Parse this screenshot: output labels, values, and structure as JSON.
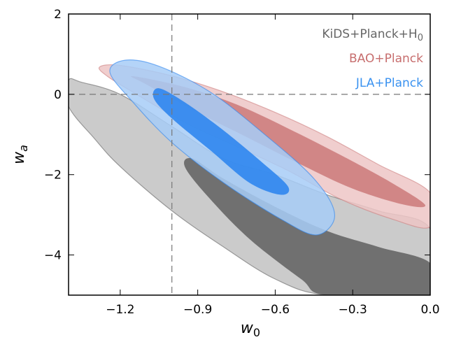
{
  "chart_data": {
    "type": "contour",
    "xlabel": "w",
    "xlabel_sub": "0",
    "ylabel": "w",
    "ylabel_sub": "a",
    "xlim": [
      -1.4,
      0.0
    ],
    "ylim": [
      -5.0,
      2.0
    ],
    "x_ticks": [
      -1.2,
      -0.9,
      -0.6,
      -0.3,
      0.0
    ],
    "x_tick_labels": [
      "−1.2",
      "−0.9",
      "−0.6",
      "−0.3",
      "0.0"
    ],
    "y_ticks": [
      2,
      0,
      -2,
      -4
    ],
    "y_tick_labels": [
      "2",
      "0",
      "−2",
      "−4"
    ],
    "reference_lines": {
      "vertical_x": -1.0,
      "horizontal_y": 0.0
    },
    "legend_position": "top-right",
    "grid": false,
    "series": [
      {
        "name": "KiDS+Planck+H",
        "name_sub": "0",
        "label_color": "#666666",
        "outer_color": "#c2c2c2",
        "inner_color": "#666666",
        "outer_contour": [
          [
            -1.4,
            0.35
          ],
          [
            -1.35,
            0.3
          ],
          [
            -1.2,
            0.0
          ],
          [
            -1.0,
            -0.8
          ],
          [
            -0.8,
            -1.6
          ],
          [
            -0.6,
            -2.0
          ],
          [
            -0.4,
            -2.5
          ],
          [
            -0.2,
            -2.9
          ],
          [
            0.0,
            -3.35
          ],
          [
            0.0,
            -5.0
          ],
          [
            -0.4,
            -5.0
          ],
          [
            -0.6,
            -4.6
          ],
          [
            -0.8,
            -3.8
          ],
          [
            -1.0,
            -2.9
          ],
          [
            -1.2,
            -1.8
          ],
          [
            -1.3,
            -1.1
          ],
          [
            -1.4,
            -0.3
          ]
        ],
        "inner_contour": [
          [
            -0.92,
            -1.6
          ],
          [
            -0.8,
            -2.1
          ],
          [
            -0.6,
            -2.8
          ],
          [
            -0.4,
            -3.4
          ],
          [
            -0.2,
            -3.8
          ],
          [
            0.0,
            -4.2
          ],
          [
            0.0,
            -5.0
          ],
          [
            -0.4,
            -5.0
          ],
          [
            -0.5,
            -4.6
          ],
          [
            -0.7,
            -3.6
          ],
          [
            -0.86,
            -2.55
          ],
          [
            -0.95,
            -1.8
          ]
        ]
      },
      {
        "name": "BAO+Planck",
        "label_color": "#c76e6e",
        "outer_color": "#edc6c6",
        "inner_color": "#cd7e7e",
        "outer_contour": [
          [
            -1.28,
            0.68
          ],
          [
            -1.2,
            0.72
          ],
          [
            -1.0,
            0.46
          ],
          [
            -0.8,
            0.06
          ],
          [
            -0.6,
            -0.45
          ],
          [
            -0.4,
            -1.05
          ],
          [
            -0.2,
            -1.75
          ],
          [
            0.0,
            -2.45
          ],
          [
            0.0,
            -3.3
          ],
          [
            -0.15,
            -3.1
          ],
          [
            -0.35,
            -2.6
          ],
          [
            -0.55,
            -1.9
          ],
          [
            -0.75,
            -1.3
          ],
          [
            -0.95,
            -0.7
          ],
          [
            -1.15,
            0.05
          ],
          [
            -1.25,
            0.45
          ]
        ],
        "inner_contour": [
          [
            -1.15,
            0.45
          ],
          [
            -0.95,
            0.18
          ],
          [
            -0.75,
            -0.25
          ],
          [
            -0.55,
            -0.85
          ],
          [
            -0.35,
            -1.5
          ],
          [
            -0.15,
            -2.2
          ],
          [
            -0.02,
            -2.75
          ],
          [
            -0.1,
            -2.75
          ],
          [
            -0.3,
            -2.35
          ],
          [
            -0.5,
            -1.75
          ],
          [
            -0.7,
            -1.1
          ],
          [
            -0.9,
            -0.45
          ],
          [
            -1.1,
            0.25
          ]
        ]
      },
      {
        "name": "JLA+Planck",
        "label_color": "#3a92f0",
        "outer_color": "#a7cdf7",
        "inner_color": "#2f86ee",
        "outer_contour": [
          [
            -1.18,
            0.85
          ],
          [
            -1.05,
            0.7
          ],
          [
            -0.85,
            0.05
          ],
          [
            -0.65,
            -0.95
          ],
          [
            -0.45,
            -2.1
          ],
          [
            -0.37,
            -3.0
          ],
          [
            -0.44,
            -3.5
          ],
          [
            -0.58,
            -3.1
          ],
          [
            -0.8,
            -2.2
          ],
          [
            -1.0,
            -1.2
          ],
          [
            -1.15,
            -0.2
          ],
          [
            -1.24,
            0.55
          ]
        ],
        "inner_contour": [
          [
            -1.05,
            0.15
          ],
          [
            -0.95,
            -0.2
          ],
          [
            -0.8,
            -0.9
          ],
          [
            -0.65,
            -1.7
          ],
          [
            -0.55,
            -2.3
          ],
          [
            -0.58,
            -2.5
          ],
          [
            -0.7,
            -2.2
          ],
          [
            -0.85,
            -1.4
          ],
          [
            -1.0,
            -0.6
          ],
          [
            -1.07,
            -0.1
          ]
        ]
      }
    ]
  }
}
